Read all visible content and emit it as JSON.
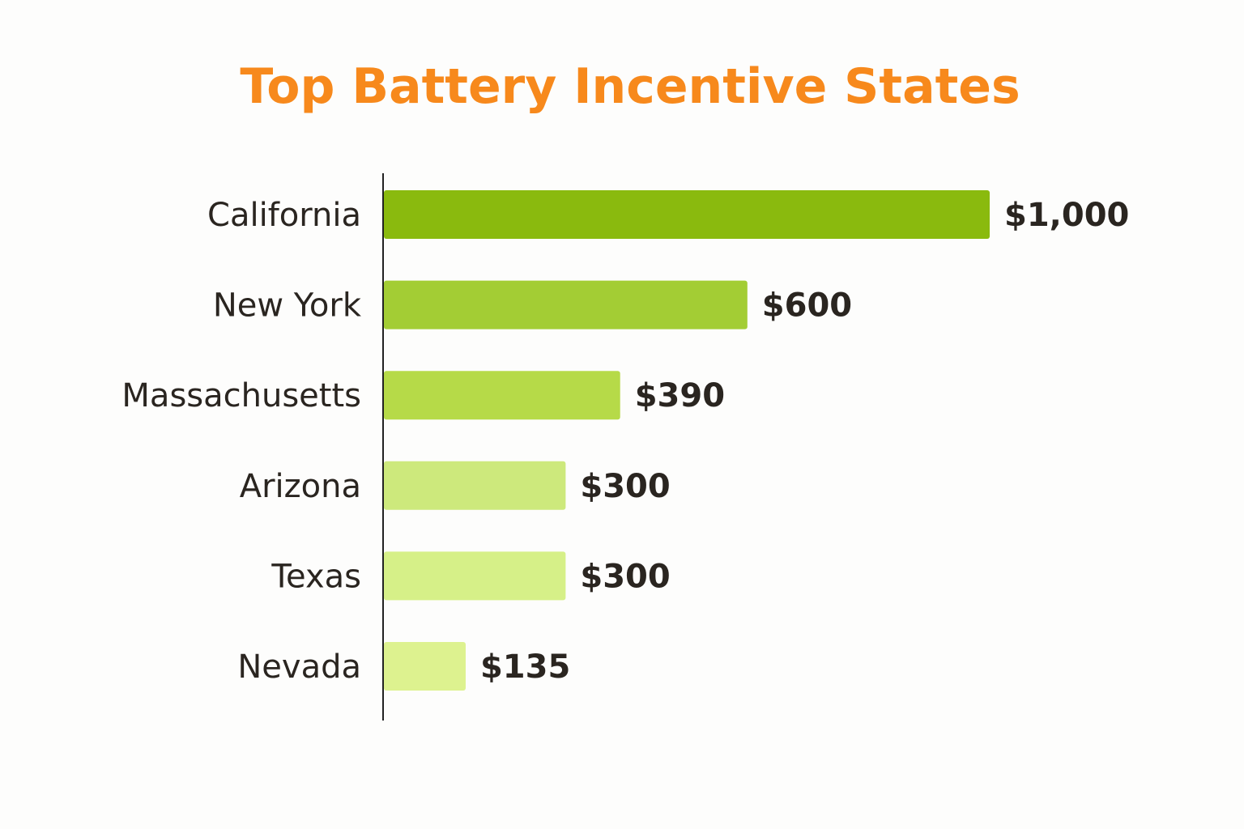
{
  "chart_data": {
    "type": "bar",
    "orientation": "horizontal",
    "title": "Top Battery Incentive States",
    "categories": [
      "California",
      "New York",
      "Massachusetts",
      "Arizona",
      "Texas",
      "Nevada"
    ],
    "values": [
      1000,
      600,
      390,
      300,
      300,
      135
    ],
    "value_labels": [
      "$1,000",
      "$600",
      "$390",
      "$300",
      "$300",
      "$135"
    ],
    "bar_colors": [
      "#8aba0e",
      "#a3cd34",
      "#b6da48",
      "#cde97c",
      "#d6f088",
      "#ddf28f"
    ],
    "title_color": "#f7891c",
    "xlim": [
      0,
      1000
    ],
    "grid": false,
    "legend": "none"
  }
}
